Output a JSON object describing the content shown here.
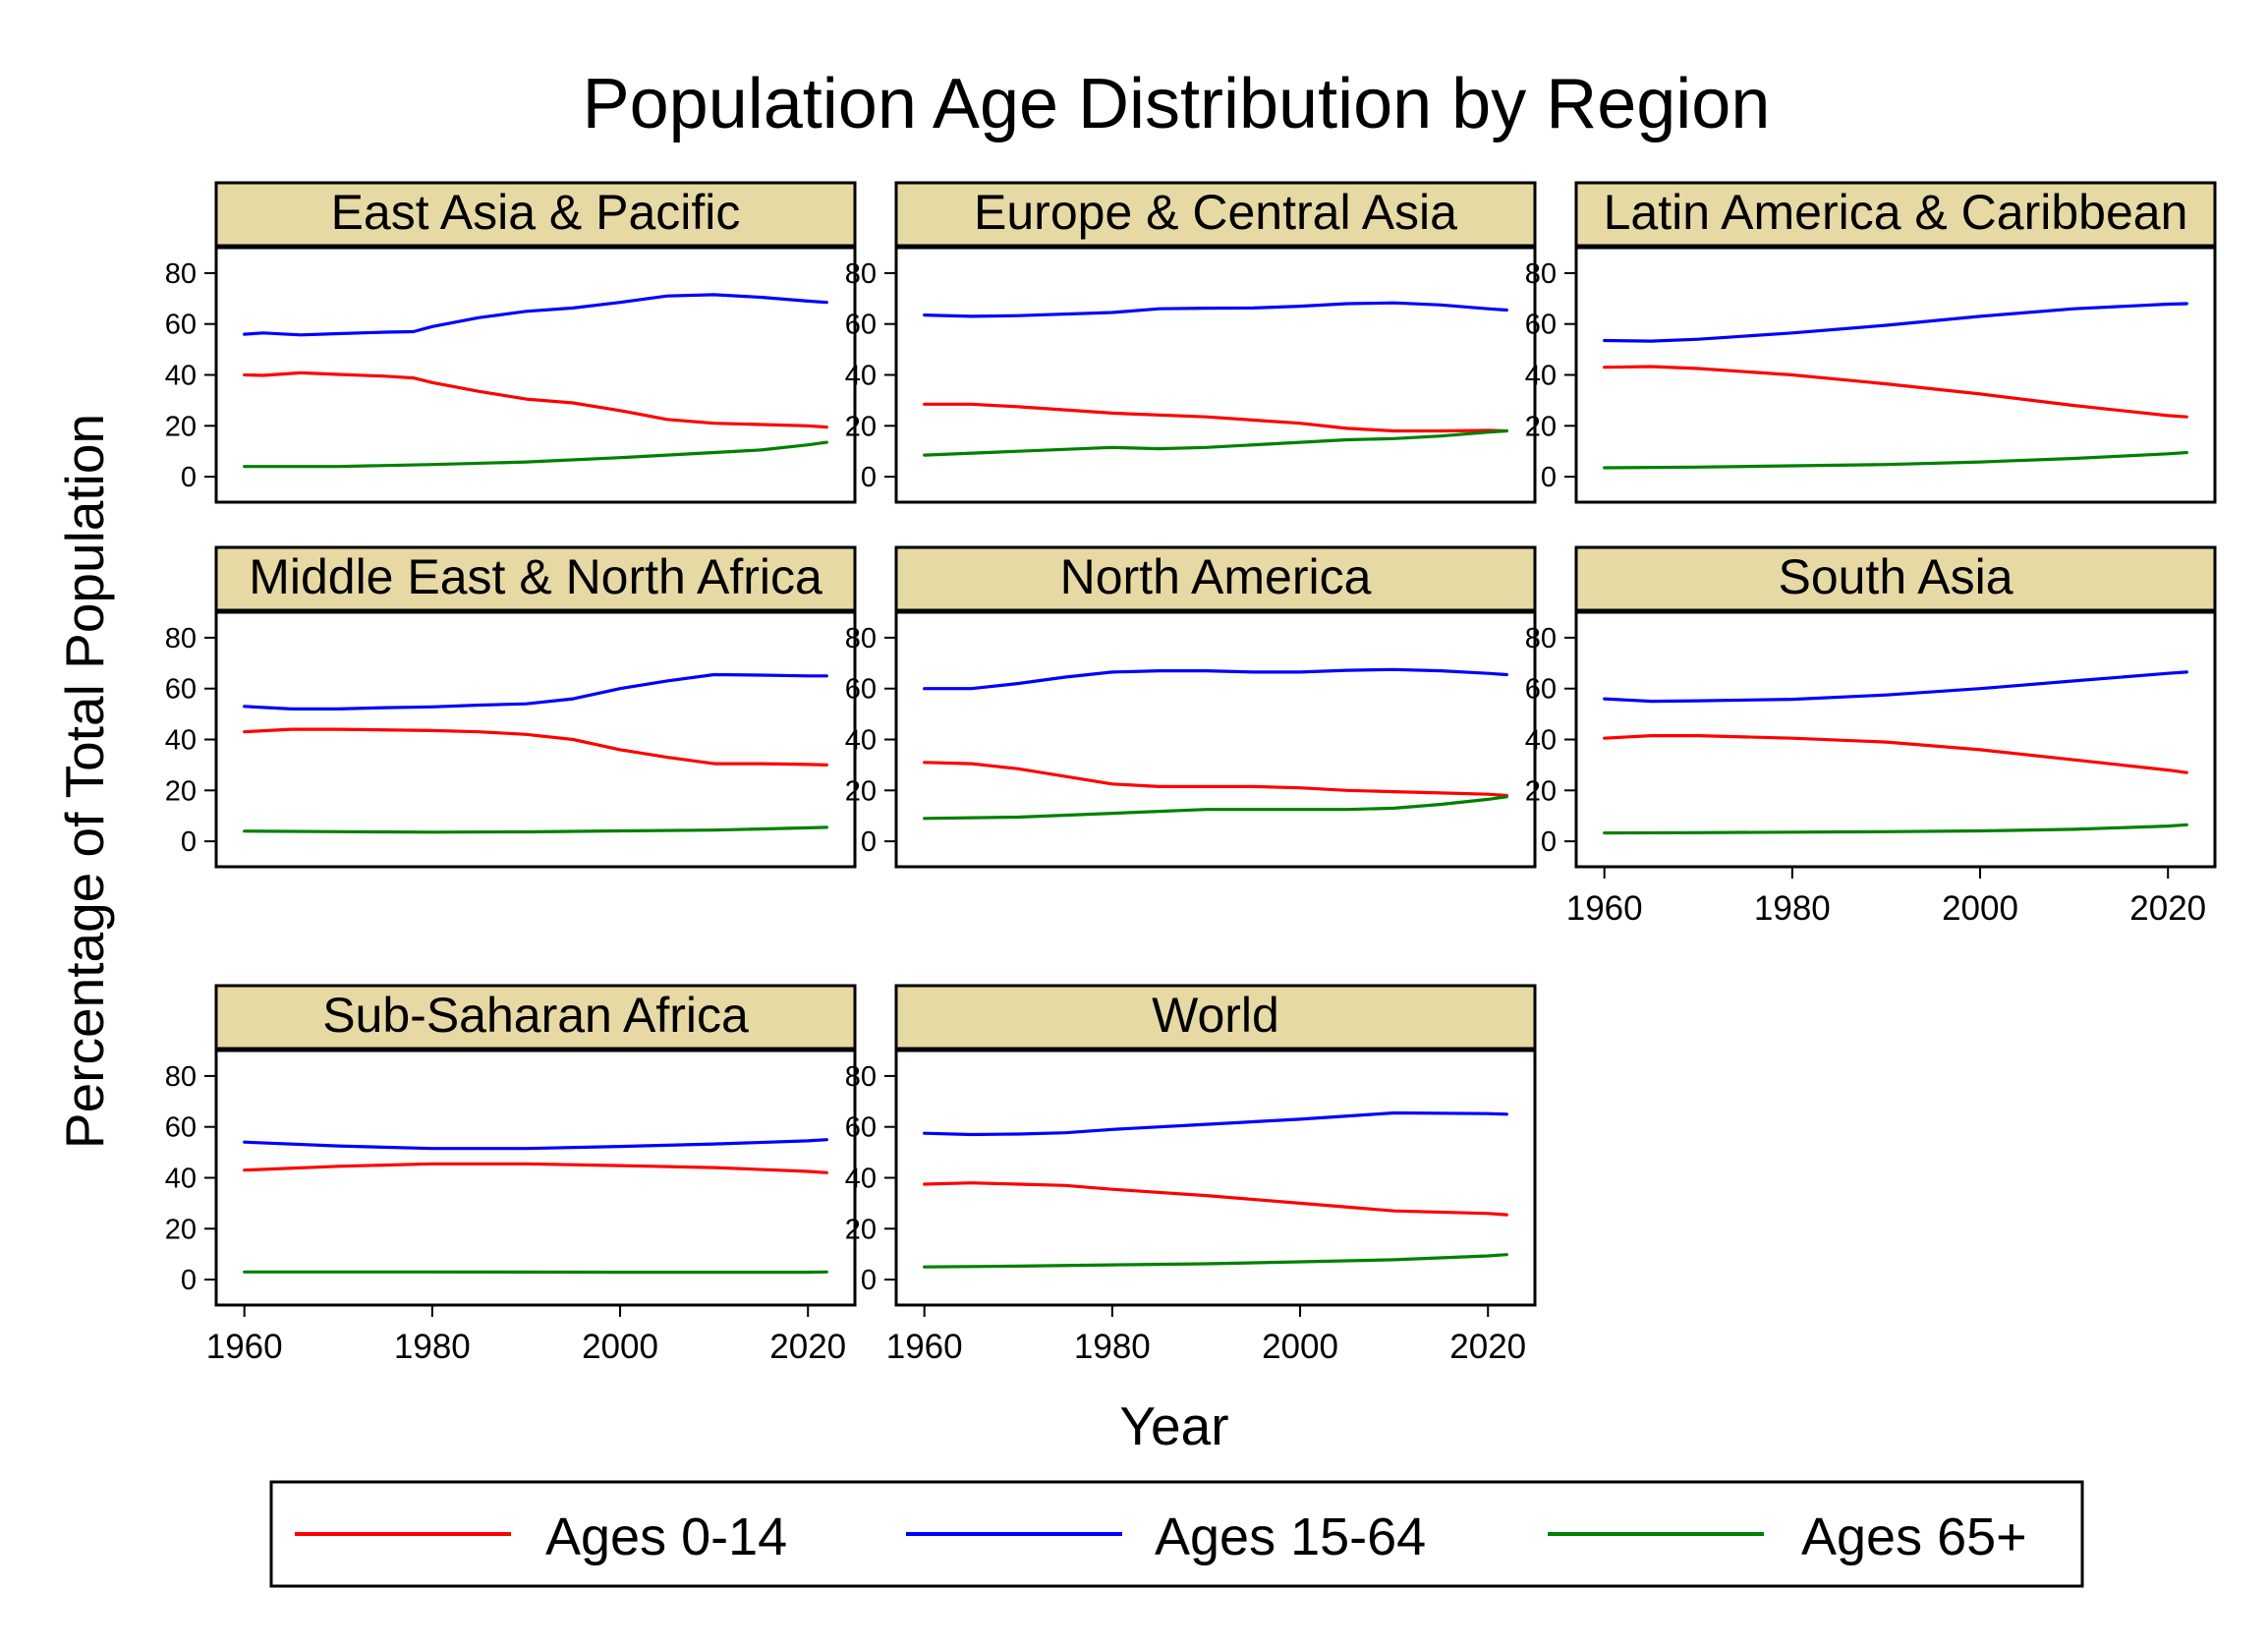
{
  "chart_data": {
    "type": "line",
    "title": "Population Age Distribution by Region",
    "xlabel": "Year",
    "ylabel": "Percentage of Total Population",
    "xlim": [
      1957,
      2025
    ],
    "ylim": [
      -10,
      90
    ],
    "x_ticks": [
      1960,
      1980,
      2000,
      2020
    ],
    "y_ticks": [
      0,
      20,
      40,
      60,
      80
    ],
    "legend_position": "bottom",
    "legend": [
      {
        "name": "Ages 0-14",
        "color": "#ff0000"
      },
      {
        "name": "Ages 15-64",
        "color": "#0000ff"
      },
      {
        "name": "Ages 65+",
        "color": "#008000"
      }
    ],
    "panels": [
      {
        "name": "East Asia & Pacific",
        "series": [
          {
            "name": "Ages 0-14",
            "x": [
              1960,
              1962,
              1966,
              1970,
              1975,
              1978,
              1980,
              1985,
              1990,
              1995,
              2000,
              2005,
              2010,
              2015,
              2020,
              2022
            ],
            "values": [
              40,
              39.8,
              40.8,
              40.2,
              39.5,
              38.8,
              37,
              33.5,
              30.5,
              29,
              26,
              22.5,
              21,
              20.5,
              20,
              19.5
            ]
          },
          {
            "name": "Ages 15-64",
            "x": [
              1960,
              1962,
              1966,
              1970,
              1975,
              1978,
              1980,
              1985,
              1990,
              1995,
              2000,
              2005,
              2010,
              2015,
              2020,
              2022
            ],
            "values": [
              56,
              56.5,
              55.7,
              56.2,
              56.8,
              57,
              59,
              62.5,
              65,
              66.3,
              68.5,
              71,
              71.5,
              70.5,
              69,
              68.5
            ]
          },
          {
            "name": "Ages 65+",
            "x": [
              1960,
              1970,
              1980,
              1990,
              2000,
              2010,
              2015,
              2020,
              2022
            ],
            "values": [
              4,
              4,
              4.8,
              5.8,
              7.5,
              9.5,
              10.5,
              12.5,
              13.5
            ]
          }
        ]
      },
      {
        "name": "Europe & Central Asia",
        "series": [
          {
            "name": "Ages 0-14",
            "x": [
              1960,
              1965,
              1970,
              1980,
              1990,
              2000,
              2005,
              2010,
              2015,
              2020,
              2022
            ],
            "values": [
              28.5,
              28.5,
              27.5,
              25,
              23.5,
              21,
              19,
              18,
              18,
              18.2,
              18
            ]
          },
          {
            "name": "Ages 15-64",
            "x": [
              1960,
              1965,
              1970,
              1980,
              1985,
              1990,
              1995,
              2000,
              2005,
              2010,
              2015,
              2020,
              2022
            ],
            "values": [
              63.5,
              63,
              63.3,
              64.5,
              66,
              66.2,
              66.3,
              67,
              68,
              68.3,
              67.5,
              66,
              65.5
            ]
          },
          {
            "name": "Ages 65+",
            "x": [
              1960,
              1970,
              1980,
              1985,
              1990,
              2000,
              2005,
              2010,
              2015,
              2020,
              2022
            ],
            "values": [
              8.5,
              10,
              11.5,
              11,
              11.5,
              13.5,
              14.5,
              15,
              16,
              17.5,
              18
            ]
          }
        ]
      },
      {
        "name": "Latin America & Caribbean",
        "series": [
          {
            "name": "Ages 0-14",
            "x": [
              1960,
              1965,
              1970,
              1980,
              1990,
              2000,
              2010,
              2020,
              2022
            ],
            "values": [
              43,
              43.3,
              42.5,
              40,
              36.5,
              32.5,
              28,
              24,
              23.5
            ]
          },
          {
            "name": "Ages 15-64",
            "x": [
              1960,
              1965,
              1970,
              1980,
              1990,
              2000,
              2010,
              2020,
              2022
            ],
            "values": [
              53.5,
              53.3,
              54,
              56.5,
              59.5,
              63,
              66,
              67.8,
              68
            ]
          },
          {
            "name": "Ages 65+",
            "x": [
              1960,
              1970,
              1980,
              1990,
              2000,
              2010,
              2020,
              2022
            ],
            "values": [
              3.5,
              3.8,
              4.3,
              4.8,
              5.8,
              7.2,
              9,
              9.5
            ]
          }
        ]
      },
      {
        "name": "Middle East & North Africa",
        "series": [
          {
            "name": "Ages 0-14",
            "x": [
              1960,
              1965,
              1970,
              1980,
              1985,
              1990,
              1995,
              2000,
              2005,
              2010,
              2015,
              2020,
              2022
            ],
            "values": [
              43,
              44,
              44,
              43.5,
              43,
              42,
              40,
              36,
              33,
              30.5,
              30.5,
              30.2,
              30
            ]
          },
          {
            "name": "Ages 15-64",
            "x": [
              1960,
              1965,
              1970,
              1975,
              1980,
              1985,
              1990,
              1995,
              2000,
              2005,
              2010,
              2015,
              2020,
              2022
            ],
            "values": [
              53,
              52,
              52,
              52.5,
              52.8,
              53.5,
              54,
              56,
              60,
              63,
              65.5,
              65.3,
              65,
              65
            ]
          },
          {
            "name": "Ages 65+",
            "x": [
              1960,
              1970,
              1980,
              1990,
              2000,
              2010,
              2020,
              2022
            ],
            "values": [
              4,
              3.8,
              3.6,
              3.7,
              4.1,
              4.4,
              5.3,
              5.5
            ]
          }
        ]
      },
      {
        "name": "North America",
        "series": [
          {
            "name": "Ages 0-14",
            "x": [
              1960,
              1965,
              1970,
              1975,
              1980,
              1985,
              1990,
              1995,
              2000,
              2005,
              2010,
              2015,
              2020,
              2022
            ],
            "values": [
              31,
              30.5,
              28.5,
              25.5,
              22.5,
              21.5,
              21.5,
              21.5,
              21,
              20,
              19.5,
              19,
              18.5,
              18
            ]
          },
          {
            "name": "Ages 15-64",
            "x": [
              1960,
              1965,
              1970,
              1975,
              1980,
              1985,
              1990,
              1995,
              2000,
              2005,
              2010,
              2015,
              2020,
              2022
            ],
            "values": [
              60,
              60,
              62,
              64.5,
              66.5,
              67,
              67,
              66.5,
              66.5,
              67.2,
              67.5,
              67,
              66,
              65.5
            ]
          },
          {
            "name": "Ages 65+",
            "x": [
              1960,
              1970,
              1980,
              1990,
              2000,
              2005,
              2010,
              2015,
              2020,
              2022
            ],
            "values": [
              9,
              9.5,
              11,
              12.5,
              12.5,
              12.5,
              13,
              14.5,
              16.5,
              17.5
            ]
          }
        ]
      },
      {
        "name": "South Asia",
        "series": [
          {
            "name": "Ages 0-14",
            "x": [
              1960,
              1965,
              1970,
              1980,
              1990,
              2000,
              2010,
              2020,
              2022
            ],
            "values": [
              40.5,
              41.5,
              41.5,
              40.5,
              39,
              36,
              32,
              28,
              27
            ]
          },
          {
            "name": "Ages 15-64",
            "x": [
              1960,
              1965,
              1970,
              1980,
              1990,
              2000,
              2010,
              2020,
              2022
            ],
            "values": [
              56,
              55,
              55.2,
              55.8,
              57.5,
              60,
              63,
              66,
              66.5
            ]
          },
          {
            "name": "Ages 65+",
            "x": [
              1960,
              1970,
              1980,
              1990,
              2000,
              2010,
              2020,
              2022
            ],
            "values": [
              3.3,
              3.4,
              3.6,
              3.8,
              4.1,
              4.7,
              6,
              6.5
            ]
          }
        ]
      },
      {
        "name": "Sub-Saharan Africa",
        "series": [
          {
            "name": "Ages 0-14",
            "x": [
              1960,
              1970,
              1980,
              1990,
              2000,
              2010,
              2020,
              2022
            ],
            "values": [
              43,
              44.5,
              45.5,
              45.5,
              44.8,
              44,
              42.5,
              42
            ]
          },
          {
            "name": "Ages 15-64",
            "x": [
              1960,
              1970,
              1980,
              1990,
              2000,
              2010,
              2020,
              2022
            ],
            "values": [
              54,
              52.5,
              51.5,
              51.5,
              52.3,
              53.3,
              54.5,
              55
            ]
          },
          {
            "name": "Ages 65+",
            "x": [
              1960,
              1980,
              2000,
              2020,
              2022
            ],
            "values": [
              3,
              3,
              2.9,
              2.9,
              3
            ]
          }
        ]
      },
      {
        "name": "World",
        "series": [
          {
            "name": "Ages 0-14",
            "x": [
              1960,
              1965,
              1970,
              1975,
              1980,
              1990,
              2000,
              2010,
              2020,
              2022
            ],
            "values": [
              37.5,
              38,
              37.5,
              37,
              35.5,
              33,
              30,
              27,
              26,
              25.5
            ]
          },
          {
            "name": "Ages 15-64",
            "x": [
              1960,
              1965,
              1970,
              1975,
              1980,
              1990,
              2000,
              2010,
              2020,
              2022
            ],
            "values": [
              57.5,
              57,
              57.2,
              57.7,
              59,
              61,
              63,
              65.5,
              65.2,
              65
            ]
          },
          {
            "name": "Ages 65+",
            "x": [
              1960,
              1970,
              1980,
              1990,
              2000,
              2010,
              2020,
              2022
            ],
            "values": [
              5,
              5.3,
              5.8,
              6.2,
              7,
              7.8,
              9.3,
              9.8
            ]
          }
        ]
      }
    ]
  },
  "colors": {
    "strip_fill": "#e6d9a4",
    "background": "#ffffff"
  }
}
